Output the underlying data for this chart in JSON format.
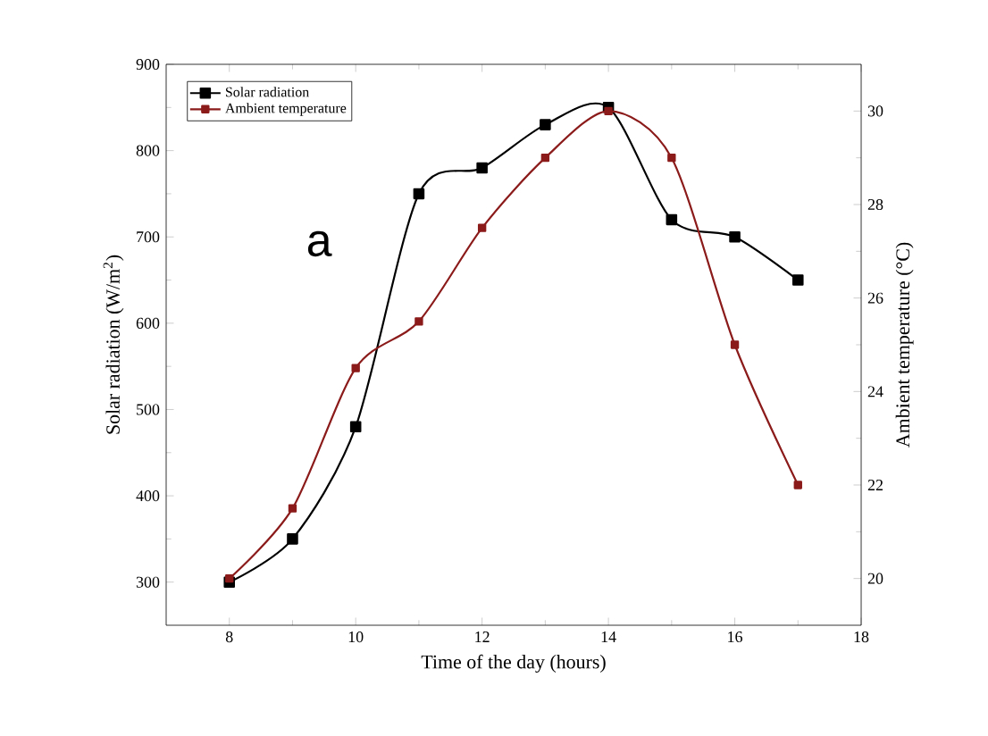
{
  "chart_data": {
    "type": "line",
    "xlabel": "Time of the day (hours)",
    "ylabel": "Solar radiation (W/m$^{2}$)",
    "y2label": "Ambient temperature (°C)",
    "annotations": [
      "a"
    ],
    "x": [
      8,
      9,
      10,
      11,
      12,
      13,
      14,
      15,
      16,
      17
    ],
    "series": [
      {
        "name": "Solar radiation",
        "color": "#000000",
        "values": [
          300,
          350,
          480,
          750,
          780,
          830,
          850,
          720,
          700,
          650
        ]
      },
      {
        "name": "Ambient temperature",
        "color": "#8b1a1a",
        "axis": "y2",
        "values": [
          20,
          21.5,
          24.5,
          25.5,
          27.5,
          29,
          30,
          29,
          25,
          22
        ]
      }
    ],
    "xlim": [
      7,
      18
    ],
    "xticks": [
      8,
      10,
      12,
      14,
      16,
      18
    ],
    "ylim": [
      250,
      900
    ],
    "yticks": [
      300,
      400,
      500,
      600,
      700,
      800,
      900
    ],
    "y2lim": [
      19,
      31
    ],
    "y2ticks": [
      20,
      22,
      24,
      26,
      28,
      30
    ],
    "legend": "top left",
    "marker": "square",
    "line_style": "solid",
    "grid": false
  }
}
